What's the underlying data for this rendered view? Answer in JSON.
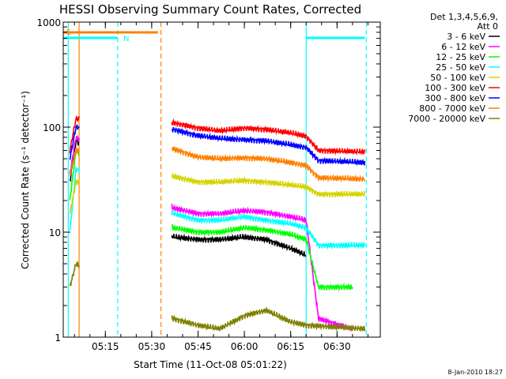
{
  "chart_data": {
    "type": "line",
    "title": "HESSI Observing Summary Count Rates, Corrected",
    "xlabel": "Start Time (11-Oct-08 05:01:22)",
    "ylabel": "Corrected Count Rate (s⁻¹ detector⁻¹)",
    "yscale": "log",
    "ylim": [
      1,
      1000
    ],
    "xlim": [
      "05:01:22",
      "06:44:00"
    ],
    "x_ticks": [
      "05:15",
      "05:30",
      "05:45",
      "06:00",
      "06:15",
      "06:30"
    ],
    "y_ticks": [
      "1",
      "10",
      "100",
      "1000"
    ],
    "legend": {
      "header_line1": "Det 1,3,4,5,6,9,",
      "header_line2": "Att 0",
      "placement": "top-right outside"
    },
    "date_stamp": "8-Jan-2010 18:27",
    "flags": [
      {
        "label": "S",
        "color": "#ff8000",
        "start": "05:01:22",
        "end": "05:32:00"
      },
      {
        "label": "N",
        "color": "#00ffff",
        "start": "05:01:22",
        "end": "05:19:00"
      },
      {
        "label": "",
        "color": "#00ffff",
        "start": "06:20:00",
        "end": "06:39:00"
      }
    ],
    "vlines": [
      {
        "t": "05:03:00",
        "color": "#00ffff",
        "style": "solid"
      },
      {
        "t": "05:06:30",
        "color": "#ff8000",
        "style": "solid"
      },
      {
        "t": "05:19:00",
        "color": "#00ffff",
        "style": "dashed"
      },
      {
        "t": "05:33:00",
        "color": "#ff8000",
        "style": "dashed"
      },
      {
        "t": "06:20:00",
        "color": "#00ffff",
        "style": "solid"
      },
      {
        "t": "06:39:30",
        "color": "#00ffff",
        "style": "dashed"
      }
    ],
    "series": [
      {
        "name": "3 - 6 keV",
        "color": "#000000",
        "points": [
          [
            "05:03:30",
            30
          ],
          [
            "05:05:30",
            75
          ],
          [
            "05:37:00",
            9
          ],
          [
            "05:45:00",
            8.5
          ],
          [
            "05:52:00",
            8.5
          ],
          [
            "06:00:00",
            9
          ],
          [
            "06:07:00",
            8.5
          ],
          [
            "06:15:00",
            7
          ],
          [
            "06:20:00",
            6
          ]
        ]
      },
      {
        "name": "6 - 12 keV",
        "color": "#ff00ff",
        "points": [
          [
            "05:03:30",
            35
          ],
          [
            "05:05:30",
            80
          ],
          [
            "05:37:00",
            17
          ],
          [
            "05:45:00",
            15
          ],
          [
            "05:52:00",
            15
          ],
          [
            "06:00:00",
            16
          ],
          [
            "06:07:00",
            15.5
          ],
          [
            "06:15:00",
            14
          ],
          [
            "06:20:00",
            13
          ],
          [
            "06:24:00",
            1.5
          ],
          [
            "06:35:00",
            1.2
          ]
        ]
      },
      {
        "name": "12 - 25 keV",
        "color": "#00ff00",
        "points": [
          [
            "05:03:30",
            20
          ],
          [
            "05:05:30",
            60
          ],
          [
            "05:37:00",
            11
          ],
          [
            "05:45:00",
            10
          ],
          [
            "05:52:00",
            10
          ],
          [
            "06:00:00",
            11
          ],
          [
            "06:07:00",
            10.5
          ],
          [
            "06:15:00",
            9.5
          ],
          [
            "06:20:00",
            8.5
          ],
          [
            "06:24:00",
            3
          ],
          [
            "06:35:00",
            3
          ]
        ]
      },
      {
        "name": "25 - 50 keV",
        "color": "#00ffff",
        "points": [
          [
            "05:03:30",
            10
          ],
          [
            "05:05:30",
            40
          ],
          [
            "05:37:00",
            15
          ],
          [
            "05:45:00",
            13
          ],
          [
            "05:52:00",
            13
          ],
          [
            "06:00:00",
            14
          ],
          [
            "06:07:00",
            13
          ],
          [
            "06:15:00",
            12
          ],
          [
            "06:20:00",
            11
          ],
          [
            "06:24:00",
            7.5
          ],
          [
            "06:39:00",
            7.5
          ]
        ]
      },
      {
        "name": "50 - 100 keV",
        "color": "#d4d400",
        "points": [
          [
            "05:03:30",
            15
          ],
          [
            "05:05:30",
            30
          ],
          [
            "05:37:00",
            34
          ],
          [
            "05:45:00",
            30
          ],
          [
            "05:52:00",
            30
          ],
          [
            "06:00:00",
            31
          ],
          [
            "06:07:00",
            30
          ],
          [
            "06:15:00",
            28
          ],
          [
            "06:20:00",
            27
          ],
          [
            "06:24:00",
            23
          ],
          [
            "06:39:00",
            23
          ]
        ]
      },
      {
        "name": "100 - 300 keV",
        "color": "#ff0000",
        "points": [
          [
            "05:03:30",
            60
          ],
          [
            "05:05:30",
            120
          ],
          [
            "05:37:00",
            110
          ],
          [
            "05:45:00",
            98
          ],
          [
            "05:52:00",
            92
          ],
          [
            "06:00:00",
            98
          ],
          [
            "06:07:00",
            95
          ],
          [
            "06:15:00",
            88
          ],
          [
            "06:20:00",
            82
          ],
          [
            "06:24:00",
            60
          ],
          [
            "06:39:00",
            58
          ]
        ]
      },
      {
        "name": "300 - 800 keV",
        "color": "#0000ff",
        "points": [
          [
            "05:03:30",
            50
          ],
          [
            "05:05:30",
            100
          ],
          [
            "05:37:00",
            95
          ],
          [
            "05:45:00",
            83
          ],
          [
            "05:52:00",
            78
          ],
          [
            "06:00:00",
            76
          ],
          [
            "06:07:00",
            74
          ],
          [
            "06:15:00",
            68
          ],
          [
            "06:20:00",
            64
          ],
          [
            "06:24:00",
            48
          ],
          [
            "06:39:00",
            46
          ]
        ]
      },
      {
        "name": "800 - 7000 keV",
        "color": "#ff8000",
        "points": [
          [
            "05:03:30",
            35
          ],
          [
            "05:05:30",
            60
          ],
          [
            "05:37:00",
            62
          ],
          [
            "05:45:00",
            52
          ],
          [
            "05:52:00",
            50
          ],
          [
            "06:00:00",
            51
          ],
          [
            "06:07:00",
            50
          ],
          [
            "06:15:00",
            46
          ],
          [
            "06:20:00",
            43
          ],
          [
            "06:24:00",
            33
          ],
          [
            "06:39:00",
            32
          ]
        ]
      },
      {
        "name": "7000 - 20000 keV",
        "color": "#808000",
        "points": [
          [
            "05:03:30",
            3
          ],
          [
            "05:05:30",
            5
          ],
          [
            "05:37:00",
            1.5
          ],
          [
            "05:45:00",
            1.3
          ],
          [
            "05:52:00",
            1.2
          ],
          [
            "06:00:00",
            1.6
          ],
          [
            "06:07:00",
            1.8
          ],
          [
            "06:15:00",
            1.4
          ],
          [
            "06:20:00",
            1.3
          ],
          [
            "06:39:00",
            1.2
          ]
        ]
      }
    ]
  }
}
